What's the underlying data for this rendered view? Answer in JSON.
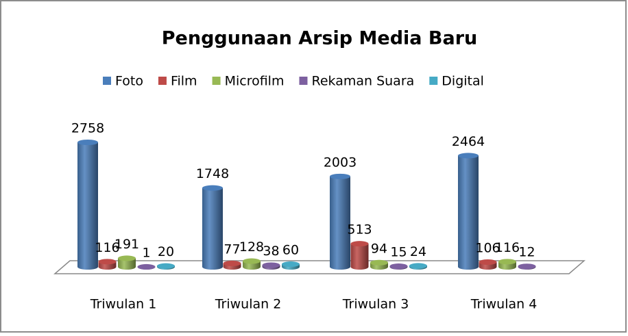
{
  "chart_data": {
    "type": "bar3d",
    "title": "Penggunaan Arsip Media Baru",
    "categories": [
      "Triwulan 1",
      "Triwulan 2",
      "Triwulan 3",
      "Triwulan 4"
    ],
    "series": [
      {
        "name": "Foto",
        "color": "#4a7ebb",
        "values": [
          2758,
          1748,
          2003,
          2464
        ]
      },
      {
        "name": "Film",
        "color": "#be4b48",
        "values": [
          116,
          77,
          513,
          106
        ]
      },
      {
        "name": "Microfilm",
        "color": "#98b954",
        "values": [
          191,
          128,
          94,
          116
        ]
      },
      {
        "name": "Rekaman Suara",
        "color": "#7d60a0",
        "values": [
          1,
          38,
          15,
          12
        ]
      },
      {
        "name": "Digital",
        "color": "#46aac5",
        "values": [
          20,
          60,
          24,
          null
        ]
      }
    ],
    "legend": "top"
  }
}
